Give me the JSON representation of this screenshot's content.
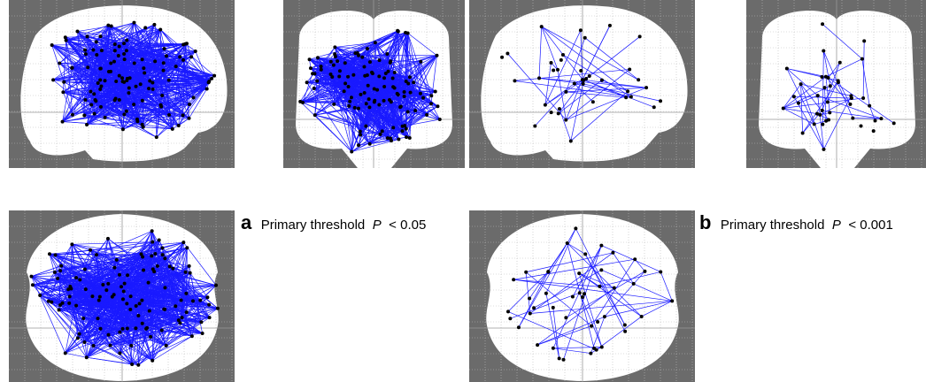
{
  "panels": [
    {
      "letter": "a",
      "label": "Primary threshold",
      "variable": "P",
      "threshold": "< 0.05"
    },
    {
      "letter": "b",
      "label": "Primary threshold",
      "variable": "P",
      "threshold": "< 0.001"
    }
  ]
}
